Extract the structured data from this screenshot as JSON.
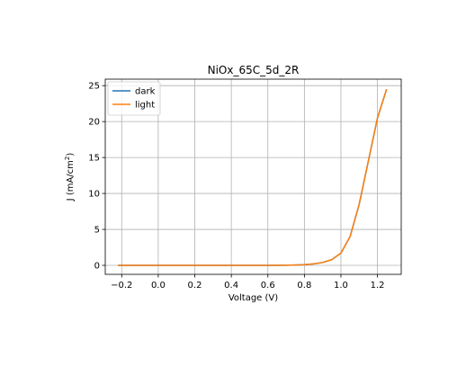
{
  "chart_data": {
    "type": "line",
    "title": "NiOx_65C_5d_2R",
    "xlabel": "Voltage (V)",
    "ylabel_main": "J (mA/cm",
    "ylabel_sup": "2",
    "ylabel_close": ")",
    "xlim": [
      -0.29,
      1.33
    ],
    "ylim": [
      -1.25,
      25.9
    ],
    "xticks": [
      -0.2,
      0.0,
      0.2,
      0.4,
      0.6,
      0.8,
      1.0,
      1.2
    ],
    "xtick_labels": [
      "−0.2",
      "0.0",
      "0.2",
      "0.4",
      "0.6",
      "0.8",
      "1.0",
      "1.2"
    ],
    "yticks": [
      0,
      5,
      10,
      15,
      20,
      25
    ],
    "ytick_labels": [
      "0",
      "5",
      "10",
      "15",
      "20",
      "25"
    ],
    "grid": true,
    "legend_position": "top-left",
    "series": [
      {
        "name": "dark",
        "color": "#1f77b4",
        "x": [
          -0.22,
          -0.1,
          0.0,
          0.1,
          0.2,
          0.3,
          0.4,
          0.5,
          0.6,
          0.7,
          0.75,
          0.8,
          0.85,
          0.9,
          0.95,
          1.0,
          1.05,
          1.1,
          1.15,
          1.2,
          1.25
        ],
        "y": [
          0,
          0,
          0,
          0,
          0,
          0,
          0,
          0,
          0,
          0.02,
          0.05,
          0.1,
          0.2,
          0.4,
          0.8,
          1.7,
          4.0,
          8.5,
          14.5,
          20.5,
          24.5
        ]
      },
      {
        "name": "light",
        "color": "#ff7f0e",
        "x": [
          -0.22,
          -0.1,
          0.0,
          0.1,
          0.2,
          0.3,
          0.4,
          0.5,
          0.6,
          0.7,
          0.75,
          0.8,
          0.85,
          0.9,
          0.95,
          1.0,
          1.05,
          1.1,
          1.15,
          1.2,
          1.25
        ],
        "y": [
          0,
          0,
          0,
          0,
          0,
          0,
          0,
          0,
          0,
          0.02,
          0.05,
          0.1,
          0.2,
          0.4,
          0.8,
          1.7,
          4.0,
          8.5,
          14.5,
          20.5,
          24.5
        ]
      }
    ]
  }
}
